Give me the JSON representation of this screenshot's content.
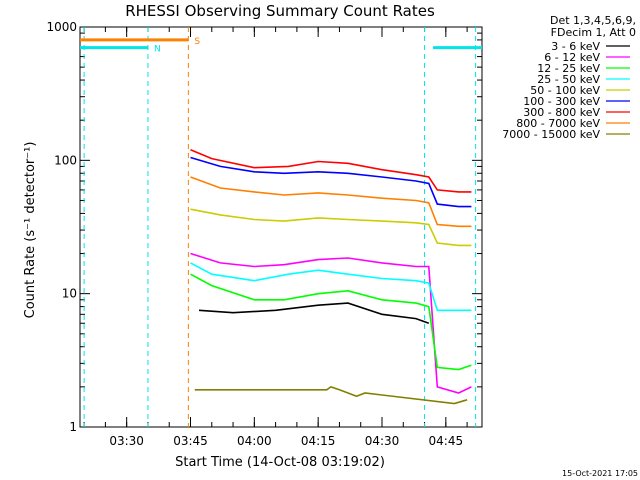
{
  "chart_data": {
    "type": "line",
    "title": "RHESSI Observing Summary Count Rates",
    "ylabel": "Count Rate (s⁻¹ detector⁻¹)",
    "xlabel": "Start Time (14-Oct-08 03:19:02)",
    "timestamp": "15-Oct-2021 17:05",
    "y_scale": "log",
    "ylim": [
      1,
      1000
    ],
    "xlim": [
      "03:19:02",
      "04:53:30"
    ],
    "y_ticks": [
      "1",
      "10",
      "100",
      "1000"
    ],
    "x_ticks": [
      "03:30",
      "03:45",
      "04:00",
      "04:15",
      "04:30",
      "04:45"
    ],
    "legend_header": [
      "Det 1,3,4,5,6,9,",
      "FDecim 1, Att 0"
    ],
    "legend_position": "right",
    "flags": [
      {
        "label": "N",
        "color": "#00e5e5",
        "level": 700,
        "segments": [
          [
            "03:19:02",
            "03:35"
          ],
          [
            "04:42",
            "04:53:30"
          ]
        ],
        "markers": [
          "03:20",
          "03:35",
          "04:40",
          "04:52"
        ]
      },
      {
        "label": "S",
        "color": "#ff7f00",
        "level": 800,
        "segments": [
          [
            "03:19:02",
            "03:44:30"
          ]
        ],
        "markers": [
          "03:44:30"
        ]
      }
    ],
    "series": [
      {
        "name": "3 - 6 keV",
        "color": "#000000",
        "points": [
          [
            "03:47",
            7.5
          ],
          [
            "03:55",
            7.2
          ],
          [
            "04:05",
            7.5
          ],
          [
            "04:15",
            8.2
          ],
          [
            "04:22",
            8.5
          ],
          [
            "04:30",
            7
          ],
          [
            "04:38",
            6.5
          ],
          [
            "04:41",
            6
          ]
        ]
      },
      {
        "name": "6 - 12 keV",
        "color": "#ff00ff",
        "points": [
          [
            "03:45",
            20
          ],
          [
            "03:52",
            17
          ],
          [
            "04:00",
            16
          ],
          [
            "04:07",
            16.5
          ],
          [
            "04:15",
            18
          ],
          [
            "04:22",
            18.5
          ],
          [
            "04:30",
            17
          ],
          [
            "04:38",
            16
          ],
          [
            "04:41",
            16
          ],
          [
            "04:43",
            2
          ],
          [
            "04:48",
            1.8
          ],
          [
            "04:51",
            2
          ]
        ]
      },
      {
        "name": "12 - 25 keV",
        "color": "#00ff00",
        "points": [
          [
            "03:45",
            14
          ],
          [
            "03:50",
            11.5
          ],
          [
            "04:00",
            9
          ],
          [
            "04:07",
            9
          ],
          [
            "04:15",
            10
          ],
          [
            "04:22",
            10.5
          ],
          [
            "04:30",
            9
          ],
          [
            "04:38",
            8.5
          ],
          [
            "04:41",
            8
          ],
          [
            "04:43",
            2.8
          ],
          [
            "04:48",
            2.7
          ],
          [
            "04:51",
            2.9
          ]
        ]
      },
      {
        "name": "25 - 50 keV",
        "color": "#00ffff",
        "points": [
          [
            "03:45",
            17
          ],
          [
            "03:50",
            14
          ],
          [
            "04:00",
            12.5
          ],
          [
            "04:08",
            14
          ],
          [
            "04:15",
            15
          ],
          [
            "04:22",
            14
          ],
          [
            "04:30",
            13
          ],
          [
            "04:38",
            12.5
          ],
          [
            "04:41",
            12
          ],
          [
            "04:43",
            7.5
          ],
          [
            "04:48",
            7.5
          ],
          [
            "04:51",
            7.5
          ]
        ]
      },
      {
        "name": "50 - 100 keV",
        "color": "#cccc00",
        "points": [
          [
            "03:45",
            43
          ],
          [
            "03:52",
            39
          ],
          [
            "04:00",
            36
          ],
          [
            "04:07",
            35
          ],
          [
            "04:15",
            37
          ],
          [
            "04:22",
            36
          ],
          [
            "04:30",
            35
          ],
          [
            "04:38",
            34
          ],
          [
            "04:41",
            33
          ],
          [
            "04:43",
            24
          ],
          [
            "04:48",
            23
          ],
          [
            "04:51",
            23
          ]
        ]
      },
      {
        "name": "100 - 300 keV",
        "color": "#0000ff",
        "points": [
          [
            "03:45",
            105
          ],
          [
            "03:52",
            90
          ],
          [
            "04:00",
            82
          ],
          [
            "04:07",
            80
          ],
          [
            "04:15",
            82
          ],
          [
            "04:22",
            80
          ],
          [
            "04:30",
            75
          ],
          [
            "04:38",
            70
          ],
          [
            "04:41",
            67
          ],
          [
            "04:43",
            47
          ],
          [
            "04:48",
            45
          ],
          [
            "04:51",
            45
          ]
        ]
      },
      {
        "name": "300 - 800 keV",
        "color": "#ff0000",
        "points": [
          [
            "03:45",
            120
          ],
          [
            "03:50",
            103
          ],
          [
            "04:00",
            88
          ],
          [
            "04:08",
            90
          ],
          [
            "04:15",
            98
          ],
          [
            "04:22",
            95
          ],
          [
            "04:30",
            85
          ],
          [
            "04:38",
            78
          ],
          [
            "04:41",
            75
          ],
          [
            "04:43",
            60
          ],
          [
            "04:48",
            58
          ],
          [
            "04:51",
            58
          ]
        ]
      },
      {
        "name": "800 - 7000 keV",
        "color": "#ff7f00",
        "points": [
          [
            "03:45",
            75
          ],
          [
            "03:52",
            62
          ],
          [
            "04:00",
            58
          ],
          [
            "04:07",
            55
          ],
          [
            "04:15",
            57
          ],
          [
            "04:22",
            55
          ],
          [
            "04:30",
            52
          ],
          [
            "04:38",
            50
          ],
          [
            "04:41",
            48
          ],
          [
            "04:43",
            33
          ],
          [
            "04:48",
            32
          ],
          [
            "04:51",
            32
          ]
        ]
      },
      {
        "name": "7000 - 15000 keV",
        "color": "#808000",
        "points": [
          [
            "03:46",
            1.9
          ],
          [
            "04:17",
            1.9
          ],
          [
            "04:18",
            2
          ],
          [
            "04:20",
            1.9
          ],
          [
            "04:22",
            1.8
          ],
          [
            "04:24",
            1.7
          ],
          [
            "04:26",
            1.8
          ],
          [
            "04:47",
            1.5
          ],
          [
            "04:50",
            1.6
          ]
        ]
      }
    ]
  }
}
